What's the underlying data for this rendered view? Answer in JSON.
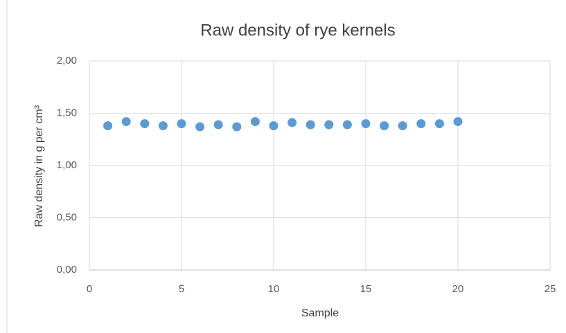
{
  "chart_data": {
    "type": "scatter",
    "title": "Raw density of rye kernels",
    "x_label": "Sample",
    "y_label": "Raw density in g per cm³",
    "series": [
      {
        "color": "#5b9bd5",
        "x": [
          1,
          2,
          3,
          4,
          5,
          6,
          7,
          8,
          9,
          10,
          11,
          12,
          13,
          14,
          15,
          16,
          17,
          18,
          19,
          20
        ],
        "values": [
          1.38,
          1.42,
          1.4,
          1.38,
          1.4,
          1.37,
          1.39,
          1.37,
          1.42,
          1.38,
          1.41,
          1.39,
          1.39,
          1.39,
          1.4,
          1.38,
          1.38,
          1.4,
          1.4,
          1.42
        ]
      }
    ],
    "xlim": [
      0,
      25
    ],
    "xticks": [
      0,
      5,
      10,
      15,
      20,
      25
    ],
    "ylim": [
      0,
      2
    ],
    "yticks": [
      {
        "value": 0,
        "label": "0,00"
      },
      {
        "value": 0.5,
        "label": "0,50"
      },
      {
        "value": 1,
        "label": "1,00"
      },
      {
        "value": 1.5,
        "label": "1,50"
      },
      {
        "value": 2,
        "label": "2,00"
      }
    ],
    "grid": true
  }
}
